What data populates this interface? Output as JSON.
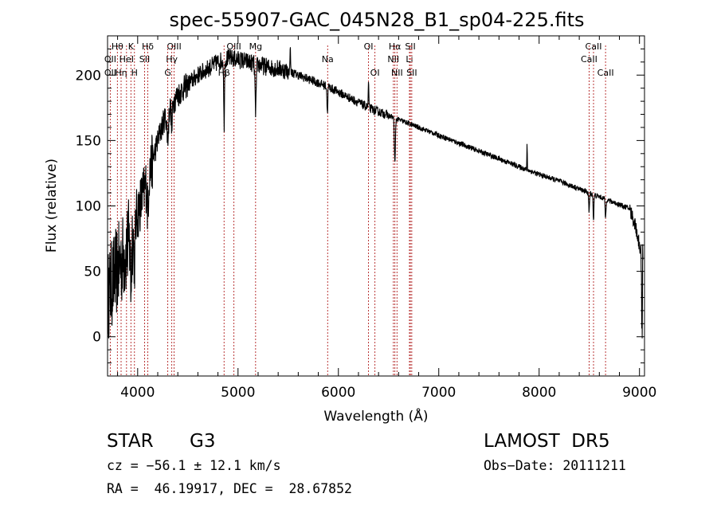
{
  "chart_data": {
    "type": "line",
    "title": "spec-55907-GAC_045N28_B1_sp04-225.fits",
    "xlabel": "Wavelength (Å)",
    "ylabel": "Flux (relative)",
    "xlim": [
      3700,
      9050
    ],
    "ylim": [
      -30,
      230
    ],
    "xticks": [
      4000,
      5000,
      6000,
      7000,
      8000,
      9000
    ],
    "yticks": [
      0,
      50,
      100,
      150,
      200
    ],
    "grid": false,
    "line_color": "#000000",
    "marker_color": "#b22222",
    "continuum": {
      "x": [
        3700,
        3760,
        3820,
        3880,
        3950,
        4000,
        4050,
        4100,
        4150,
        4200,
        4260,
        4320,
        4400,
        4500,
        4600,
        4700,
        4800,
        4900,
        5000,
        5100,
        5200,
        5300,
        5400,
        5500,
        5600,
        5700,
        5800,
        5900,
        6000,
        6100,
        6200,
        6300,
        6400,
        6500,
        6600,
        6700,
        6800,
        6900,
        7000,
        7200,
        7400,
        7600,
        7800,
        8000,
        8200,
        8400,
        8500,
        8600,
        8700,
        8800,
        8900,
        8960,
        9000,
        9030
      ],
      "y": [
        30,
        45,
        55,
        65,
        80,
        95,
        108,
        120,
        135,
        150,
        165,
        175,
        185,
        193,
        200,
        205,
        210,
        213,
        212,
        210,
        208,
        206,
        205,
        203,
        200,
        197,
        194,
        191,
        187,
        183,
        179,
        175,
        172,
        169,
        166,
        163,
        160,
        157,
        154,
        148,
        142,
        136,
        130,
        124,
        119,
        113,
        110,
        107,
        104,
        101,
        98,
        85,
        70,
        60
      ]
    },
    "features": [
      {
        "x": 3933,
        "depth": 35,
        "width": 6
      },
      {
        "x": 3968,
        "depth": 30,
        "width": 6
      },
      {
        "x": 4101,
        "depth": 25,
        "width": 5
      },
      {
        "x": 4300,
        "depth": 20,
        "width": 8
      },
      {
        "x": 4340,
        "depth": 20,
        "width": 5
      },
      {
        "x": 4861,
        "depth": 50,
        "width": 4
      },
      {
        "x": 5175,
        "depth": 35,
        "width": 6
      },
      {
        "x": 5890,
        "depth": 20,
        "width": 4
      },
      {
        "x": 6563,
        "depth": 35,
        "width": 5
      },
      {
        "x": 8498,
        "depth": 15,
        "width": 4
      },
      {
        "x": 8542,
        "depth": 20,
        "width": 4
      },
      {
        "x": 8662,
        "depth": 15,
        "width": 4
      },
      {
        "x": 5520,
        "depth": -20,
        "width": 3
      },
      {
        "x": 6300,
        "depth": -20,
        "width": 3
      },
      {
        "x": 7880,
        "depth": -20,
        "width": 2
      }
    ],
    "line_markers": [
      {
        "label": "Hθ",
        "x": 3798,
        "row": 0
      },
      {
        "label": "OII",
        "x": 3727,
        "row": 1
      },
      {
        "label": "OII",
        "x": 3727,
        "row": 2
      },
      {
        "label": "Hη",
        "x": 3835,
        "row": 2
      },
      {
        "label": "K",
        "x": 3933,
        "row": 0
      },
      {
        "label": "HeI",
        "x": 3889,
        "row": 1
      },
      {
        "label": "H",
        "x": 3968,
        "row": 2
      },
      {
        "label": "Hδ",
        "x": 4101,
        "row": 0
      },
      {
        "label": "SII",
        "x": 4069,
        "row": 1
      },
      {
        "label": "OIII",
        "x": 4363,
        "row": 0
      },
      {
        "label": "Hγ",
        "x": 4340,
        "row": 1
      },
      {
        "label": "G",
        "x": 4300,
        "row": 2
      },
      {
        "label": "Mg",
        "x": 5175,
        "row": 0
      },
      {
        "label": "Hβ",
        "x": 4861,
        "row": 2
      },
      {
        "label": "OIII",
        "x": 4959,
        "row": 0
      },
      {
        "label": "Na",
        "x": 5893,
        "row": 1
      },
      {
        "label": "OI",
        "x": 6300,
        "row": 0
      },
      {
        "label": "OI",
        "x": 6364,
        "row": 2
      },
      {
        "label": "Hα",
        "x": 6563,
        "row": 0
      },
      {
        "label": "NII",
        "x": 6548,
        "row": 1
      },
      {
        "label": "NII",
        "x": 6584,
        "row": 2
      },
      {
        "label": "SII",
        "x": 6717,
        "row": 0
      },
      {
        "label": "Li",
        "x": 6708,
        "row": 1
      },
      {
        "label": "SII",
        "x": 6731,
        "row": 2
      },
      {
        "label": "CaII",
        "x": 8542,
        "row": 0
      },
      {
        "label": "CaII",
        "x": 8498,
        "row": 1
      },
      {
        "label": "CaII",
        "x": 8662,
        "row": 2
      }
    ]
  },
  "info": {
    "class_label": "STAR",
    "subclass": "G3",
    "cz": "cz = −56.1 ± 12.1 km/s",
    "coords": "RA =  46.19917, DEC =  28.67852",
    "survey": "LAMOST  DR5",
    "obs_date": "Obs−Date: 20111211"
  }
}
